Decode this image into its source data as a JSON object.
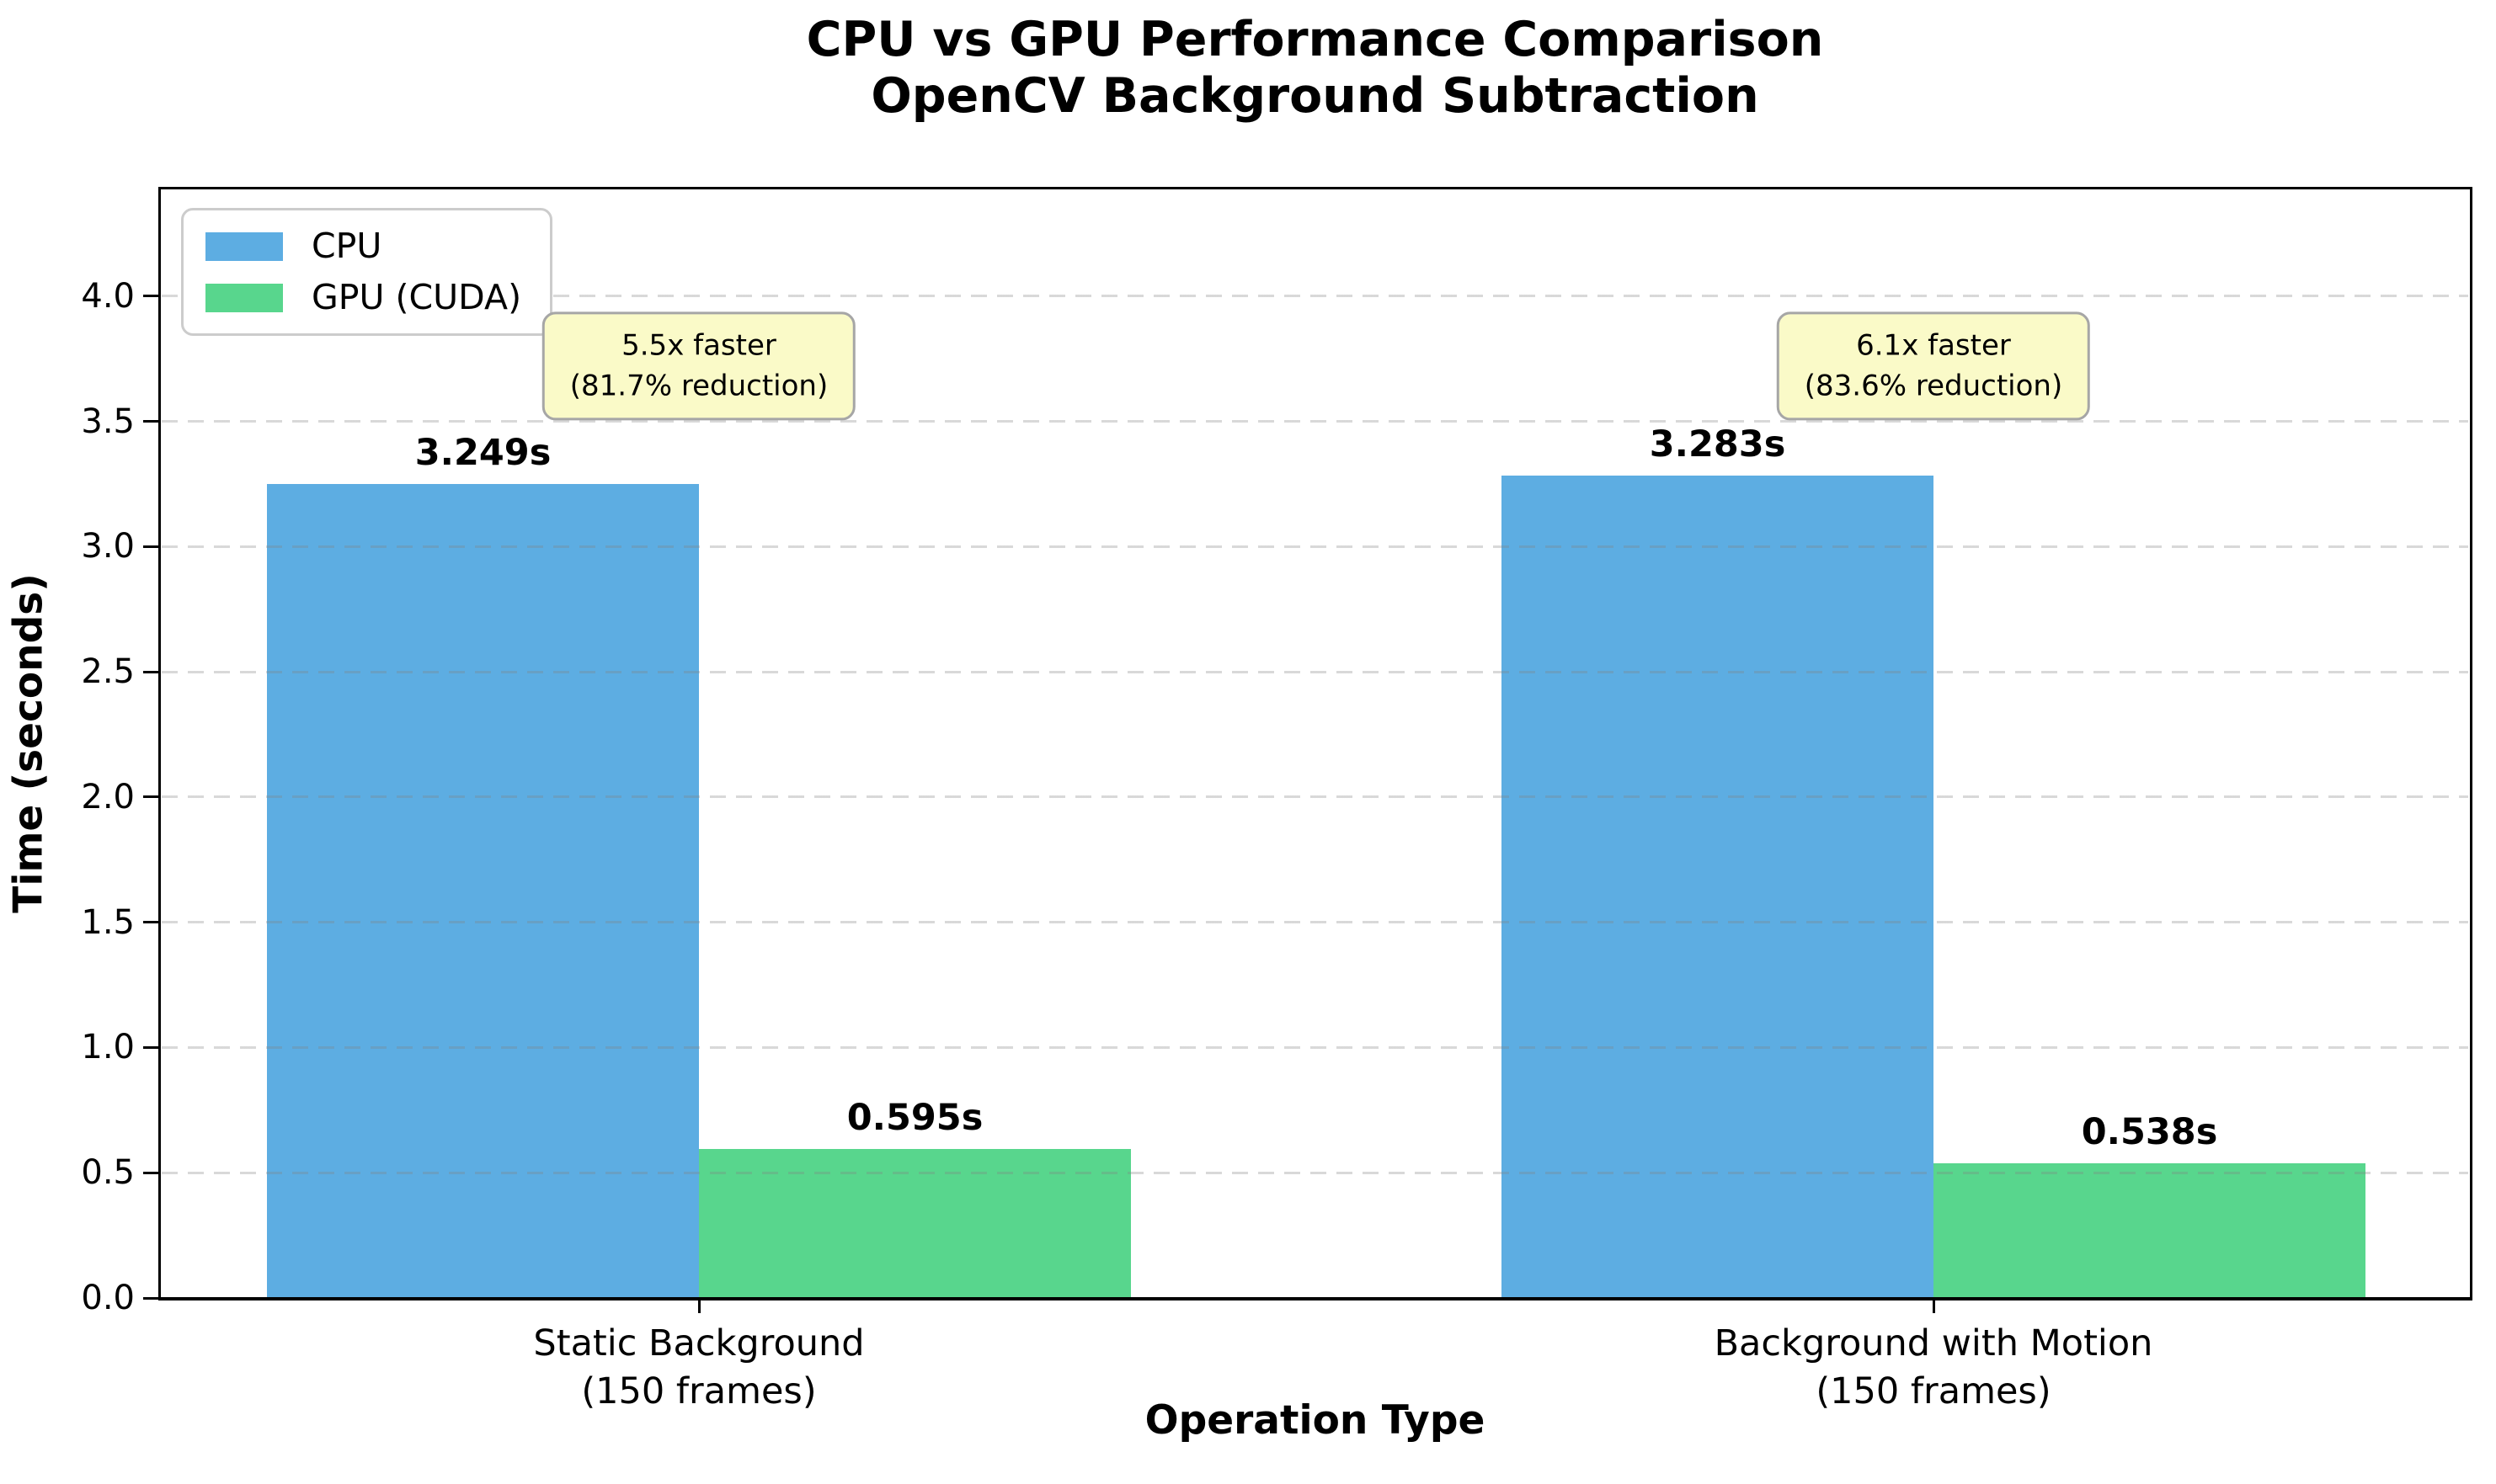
{
  "title": {
    "line1": "CPU vs GPU Performance Comparison",
    "line2": "OpenCV Background Subtraction"
  },
  "chart_data": {
    "type": "bar",
    "title": "CPU vs GPU Performance Comparison\nOpenCV Background Subtraction",
    "xlabel": "Operation Type",
    "ylabel": "Time (seconds)",
    "categories": [
      {
        "line1": "Static Background",
        "line2": "(150 frames)"
      },
      {
        "line1": "Background with Motion",
        "line2": "(150 frames)"
      }
    ],
    "series": [
      {
        "name": "CPU",
        "color": "#5DADE2",
        "values": [
          3.249,
          3.283
        ],
        "bar_labels": [
          "3.249s",
          "3.283s"
        ]
      },
      {
        "name": "GPU (CUDA)",
        "color": "#58D68D",
        "values": [
          0.595,
          0.538
        ],
        "bar_labels": [
          "0.595s",
          "0.538s"
        ]
      }
    ],
    "annotations": [
      {
        "line1": "5.5x faster",
        "line2": "(81.7% reduction)",
        "y": 3.72
      },
      {
        "line1": "6.1x faster",
        "line2": "(83.6% reduction)",
        "y": 3.72
      }
    ],
    "yticks": [
      "0.0",
      "0.5",
      "1.0",
      "1.5",
      "2.0",
      "2.5",
      "3.0",
      "3.5",
      "4.0"
    ],
    "ylim": [
      0,
      4.43
    ],
    "bar_width_category_fraction": 0.35,
    "grid": {
      "axis": "y",
      "style": "dashed",
      "color": "rgba(128,128,128,0.3)"
    },
    "legend_position": "upper left",
    "colors": {
      "cpu_bar": "#5DADE2",
      "gpu_bar": "#58D68D",
      "annotation_bg": "#FAFAC8",
      "annotation_border": "#A6A6A6",
      "axis": "#000000"
    }
  }
}
